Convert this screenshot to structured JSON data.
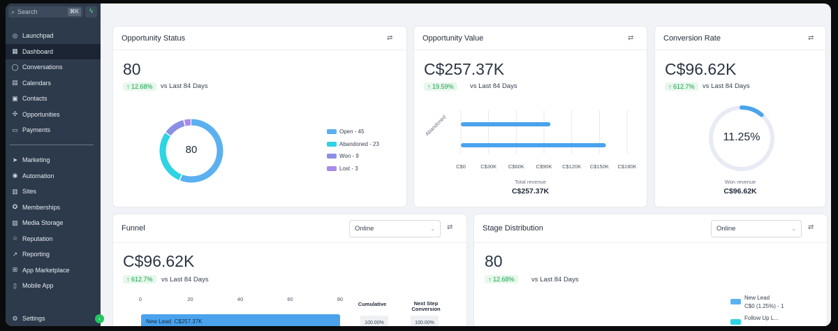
{
  "sidebar": {
    "search_placeholder": "Search",
    "search_shortcut": "⌘K",
    "items": [
      {
        "label": "Launchpad",
        "icon": "rocket-icon"
      },
      {
        "label": "Dashboard",
        "icon": "dashboard-icon",
        "active": true
      },
      {
        "label": "Conversations",
        "icon": "chat-icon"
      },
      {
        "label": "Calendars",
        "icon": "calendar-icon"
      },
      {
        "label": "Contacts",
        "icon": "contacts-icon"
      },
      {
        "label": "Opportunities",
        "icon": "opportunities-icon"
      },
      {
        "label": "Payments",
        "icon": "payments-icon"
      }
    ],
    "items2": [
      {
        "label": "Marketing",
        "icon": "send-icon"
      },
      {
        "label": "Automation",
        "icon": "automation-icon"
      },
      {
        "label": "Sites",
        "icon": "sites-icon"
      },
      {
        "label": "Memberships",
        "icon": "memberships-icon"
      },
      {
        "label": "Media Storage",
        "icon": "media-icon"
      },
      {
        "label": "Reputation",
        "icon": "star-icon"
      },
      {
        "label": "Reporting",
        "icon": "reporting-icon"
      },
      {
        "label": "App Marketplace",
        "icon": "marketplace-icon"
      },
      {
        "label": "Mobile App",
        "icon": "mobile-icon"
      }
    ],
    "settings_label": "Settings"
  },
  "opportunity_status": {
    "title": "Opportunity Status",
    "value": "80",
    "change": "↑ 12.68%",
    "compare": "vs Last 84 Days",
    "center_value": "80",
    "legend": [
      {
        "label": "Open - 45",
        "color": "#5bb0f0"
      },
      {
        "label": "Abandoned - 23",
        "color": "#2dd4e4"
      },
      {
        "label": "Won - 9",
        "color": "#8b8fe6"
      },
      {
        "label": "Lost - 3",
        "color": "#a78bea"
      }
    ]
  },
  "opportunity_value": {
    "title": "Opportunity Value",
    "value": "C$257.37K",
    "change": "↑ 19.59%",
    "compare": "vs Last 84 Days",
    "y_label": "Abandoned",
    "x_ticks": [
      "C$0",
      "C$30K",
      "C$60K",
      "C$90K",
      "C$120K",
      "C$150K",
      "C$180K"
    ],
    "total_label": "Total revenue",
    "total_value": "C$257.37K"
  },
  "conversion_rate": {
    "title": "Conversion Rate",
    "value": "C$96.62K",
    "change": "↑ 612.7%",
    "compare": "vs Last 84 Days",
    "gauge_value": "11.25%",
    "gauge_fraction": 0.1125,
    "won_label": "Won revenue",
    "won_value": "C$96.62K"
  },
  "funnel": {
    "title": "Funnel",
    "select": "Online",
    "value": "C$96.62K",
    "change": "↑ 612.7%",
    "compare": "vs Last 84 Days",
    "x_ticks": [
      "0",
      "20",
      "40",
      "60",
      "80"
    ],
    "col1": "Cumulative",
    "col2": "Next Step Conversion",
    "bar_label": "New Lead",
    "bar_value": "C$257.37K",
    "cum_value": "100.00%",
    "next_value": "100.00%"
  },
  "stage_distribution": {
    "title": "Stage Distribution",
    "select": "Online",
    "value": "80",
    "change": "↑ 12.68%",
    "compare": "vs Last 84 Days",
    "legend": [
      {
        "label": "New Lead",
        "sub": "C$0 (1.25%) - 1",
        "color": "#5bb0f0"
      },
      {
        "label": "Follow Up L...",
        "sub": "",
        "color": "#2dd4e4"
      }
    ]
  },
  "chart_data": [
    {
      "type": "pie",
      "title": "Opportunity Status",
      "categories": [
        "Open",
        "Abandoned",
        "Won",
        "Lost"
      ],
      "values": [
        45,
        23,
        9,
        3
      ]
    },
    {
      "type": "bar",
      "title": "Opportunity Value",
      "categories": [
        "",
        "Abandoned"
      ],
      "values": [
        97000,
        157000
      ],
      "xlim": [
        0,
        180000
      ],
      "orientation": "horizontal"
    }
  ]
}
